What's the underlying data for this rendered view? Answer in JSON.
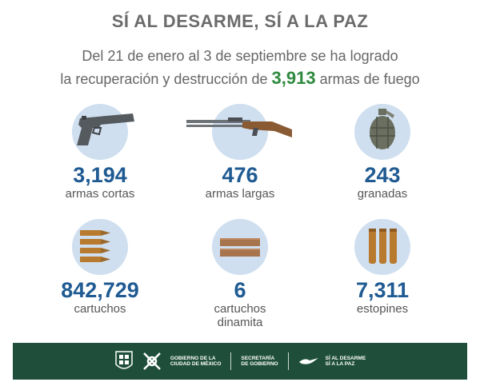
{
  "header": {
    "title": "SÍ AL DESARME, SÍ A LA PAZ",
    "line1": "Del 21 de enero al 3 de septiembre se ha logrado",
    "line2_pre": "la recuperación y destrucción de",
    "highlight": "3,913",
    "line2_post": "armas de fuego"
  },
  "stats": [
    {
      "value": "3,194",
      "label": "armas cortas",
      "icon": "pistol-icon"
    },
    {
      "value": "476",
      "label": "armas largas",
      "icon": "rifle-icon"
    },
    {
      "value": "243",
      "label": "granadas",
      "icon": "grenade-icon"
    },
    {
      "value": "842,729",
      "label": "cartuchos",
      "icon": "cartridges-icon"
    },
    {
      "value": "6",
      "label": "cartuchos\ndinamita",
      "label_line1": "cartuchos",
      "label_line2": "dinamita",
      "icon": "dynamite-icon"
    },
    {
      "value": "7,311",
      "label": "estopines",
      "icon": "detonators-icon"
    }
  ],
  "footer": {
    "gov_line1": "GOBIERNO DE LA",
    "gov_line2": "CIUDAD DE MÉXICO",
    "sec_line1": "SECRETARÍA",
    "sec_line2": "DE GOBIERNO",
    "campaign_line1": "SÍ AL DESARME",
    "campaign_line2": "SÍ A LA PAZ"
  },
  "colors": {
    "accent_green": "#2f8a3e",
    "number_blue": "#1f5a92",
    "circle_bg": "#cfdfef",
    "footer_bg": "#1f4f3b"
  }
}
